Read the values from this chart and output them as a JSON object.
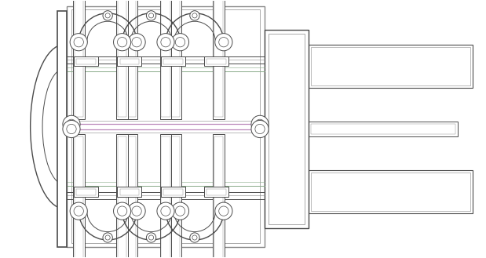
{
  "bg_color": "#ffffff",
  "lc": "#4a4a4a",
  "lc2": "#888888",
  "pink": "#bb88bb",
  "green": "#88aa88",
  "fig_w": 6.19,
  "fig_h": 3.29,
  "dpi": 100,
  "xl": 0,
  "xr": 100,
  "yb": 0,
  "yt": 53
}
